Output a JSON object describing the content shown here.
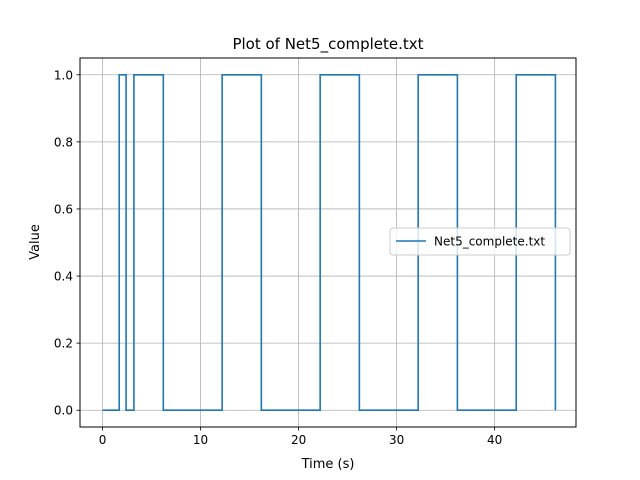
{
  "chart_data": {
    "type": "line",
    "title": "Plot of Net5_complete.txt",
    "xlabel": "Time (s)",
    "ylabel": "Value",
    "xlim": [
      -2.3,
      48.3
    ],
    "ylim": [
      -0.05,
      1.05
    ],
    "xticks": [
      0,
      10,
      20,
      30,
      40
    ],
    "yticks": [
      0.0,
      0.2,
      0.4,
      0.6,
      0.8,
      1.0
    ],
    "xtick_labels": [
      "0",
      "10",
      "20",
      "30",
      "40"
    ],
    "ytick_labels": [
      "0.0",
      "0.2",
      "0.4",
      "0.6",
      "0.8",
      "1.0"
    ],
    "grid": true,
    "legend_position": "center-right",
    "series": [
      {
        "name": "Net5_complete.txt",
        "color": "#1f77b4",
        "step": "post",
        "x": [
          0,
          1.7,
          2.4,
          3.2,
          6.2,
          12.2,
          16.2,
          22.2,
          26.2,
          32.2,
          36.2,
          42.2,
          46.2
        ],
        "y": [
          0,
          1,
          0,
          1,
          0,
          1,
          0,
          1,
          0,
          1,
          0,
          1,
          0
        ]
      }
    ]
  }
}
